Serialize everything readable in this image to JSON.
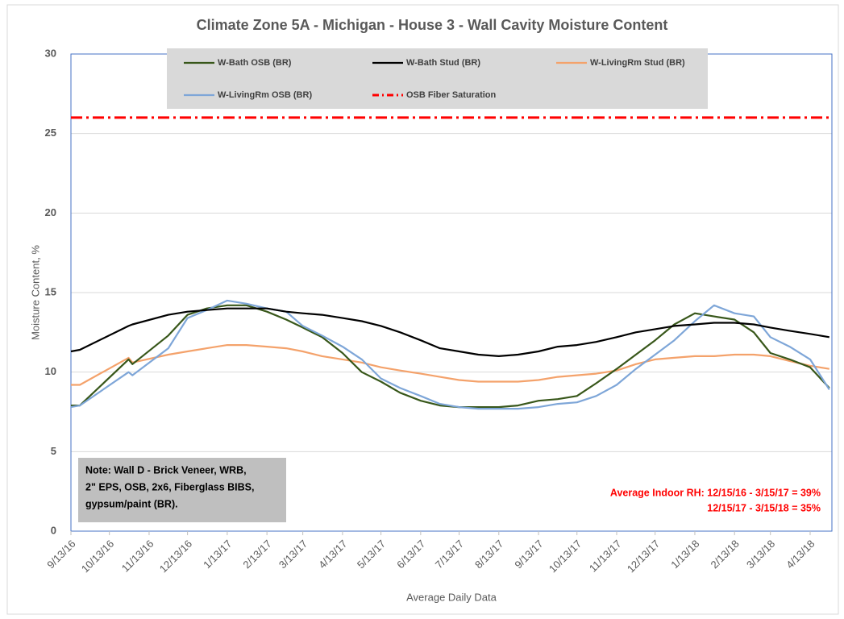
{
  "chart_data": {
    "type": "line",
    "title": "Climate Zone 5A - Michigan - House 3 - Wall Cavity Moisture Content",
    "x_label": "Average Daily Data",
    "y_label": "Moisture Content, %",
    "x": [
      "9/13/16",
      "9/20/16",
      "10/28/16",
      "10/31/16",
      "11/28/16",
      "12/13/16",
      "12/28/16",
      "1/13/17",
      "1/28/17",
      "2/13/17",
      "2/28/17",
      "3/13/17",
      "3/28/17",
      "4/13/17",
      "4/28/17",
      "5/13/17",
      "5/28/17",
      "6/13/17",
      "6/28/17",
      "7/13/17",
      "7/28/17",
      "8/13/17",
      "8/28/17",
      "9/13/17",
      "9/28/17",
      "10/13/17",
      "10/28/17",
      "11/13/17",
      "11/28/17",
      "12/13/17",
      "12/28/17",
      "1/13/18",
      "1/28/18",
      "2/13/18",
      "2/28/18",
      "3/13/18",
      "3/28/18",
      "4/13/18",
      "4/28/18"
    ],
    "series": [
      {
        "name": "W-Bath OSB (BR)",
        "color": "#38571a",
        "values": [
          7.9,
          7.9,
          10.8,
          10.5,
          12.3,
          13.6,
          14.0,
          14.2,
          14.2,
          13.8,
          13.3,
          12.8,
          12.2,
          11.2,
          10.0,
          9.4,
          8.7,
          8.2,
          7.9,
          7.8,
          7.8,
          7.8,
          7.9,
          8.2,
          8.3,
          8.5,
          9.3,
          10.2,
          11.1,
          12.0,
          13.0,
          13.7,
          13.5,
          13.3,
          12.5,
          11.2,
          10.8,
          10.3,
          9.0
        ]
      },
      {
        "name": "W-Bath Stud (BR)",
        "color": "#000000",
        "values": [
          11.3,
          11.4,
          12.9,
          13.0,
          13.6,
          13.8,
          13.9,
          14.0,
          14.0,
          14.0,
          13.8,
          13.7,
          13.6,
          13.4,
          13.2,
          12.9,
          12.5,
          12.0,
          11.5,
          11.3,
          11.1,
          11.0,
          11.1,
          11.3,
          11.6,
          11.7,
          11.9,
          12.2,
          12.5,
          12.7,
          12.9,
          13.0,
          13.1,
          13.1,
          13.0,
          12.8,
          12.6,
          12.4,
          12.2
        ]
      },
      {
        "name": "W-LivingRm Stud (BR)",
        "color": "#f4a26b",
        "values": [
          9.2,
          9.2,
          10.9,
          10.6,
          11.1,
          11.3,
          11.5,
          11.7,
          11.7,
          11.6,
          11.5,
          11.3,
          11.0,
          10.8,
          10.6,
          10.3,
          10.1,
          9.9,
          9.7,
          9.5,
          9.4,
          9.4,
          9.4,
          9.5,
          9.7,
          9.8,
          9.9,
          10.1,
          10.5,
          10.8,
          10.9,
          11.0,
          11.0,
          11.1,
          11.1,
          11.0,
          10.7,
          10.4,
          10.2
        ]
      },
      {
        "name": "W-LivingRm OSB (BR)",
        "color": "#7ea6d8",
        "values": [
          7.8,
          7.9,
          10.0,
          9.8,
          11.5,
          13.4,
          13.9,
          14.5,
          14.3,
          14.0,
          13.8,
          12.9,
          12.3,
          11.6,
          10.8,
          9.6,
          9.0,
          8.5,
          8.0,
          7.8,
          7.7,
          7.7,
          7.7,
          7.8,
          8.0,
          8.1,
          8.5,
          9.2,
          10.2,
          11.1,
          12.0,
          13.2,
          14.2,
          13.7,
          13.5,
          12.2,
          11.6,
          10.8,
          8.9
        ]
      }
    ],
    "reference_lines": [
      {
        "name": "OSB Fiber Saturation",
        "value": 26,
        "color": "#ff0000"
      }
    ],
    "xlim": [
      "9/13/16",
      "4/30/18"
    ],
    "xticks": [
      "9/13/16",
      "10/13/16",
      "11/13/16",
      "12/13/16",
      "1/13/17",
      "2/13/17",
      "3/13/17",
      "4/13/17",
      "5/13/17",
      "6/13/17",
      "7/13/17",
      "8/13/17",
      "9/13/17",
      "10/13/17",
      "11/13/17",
      "12/13/17",
      "1/13/18",
      "2/13/18",
      "3/13/18",
      "4/13/18"
    ],
    "ylim": [
      0,
      30
    ],
    "yticks": [
      0,
      5,
      10,
      15,
      20,
      25,
      30
    ],
    "grid": true,
    "legend_position": "top",
    "note": [
      "Note: Wall D - Brick Veneer, WRB,",
      "2\" EPS, OSB, 2x6, Fiberglass BIBS,",
      "gypsum/paint (BR)."
    ],
    "rh_note": [
      "Average Indoor RH: 12/15/16 - 3/15/17 = 39%",
      "12/15/17 - 3/15/18 = 35%"
    ]
  }
}
